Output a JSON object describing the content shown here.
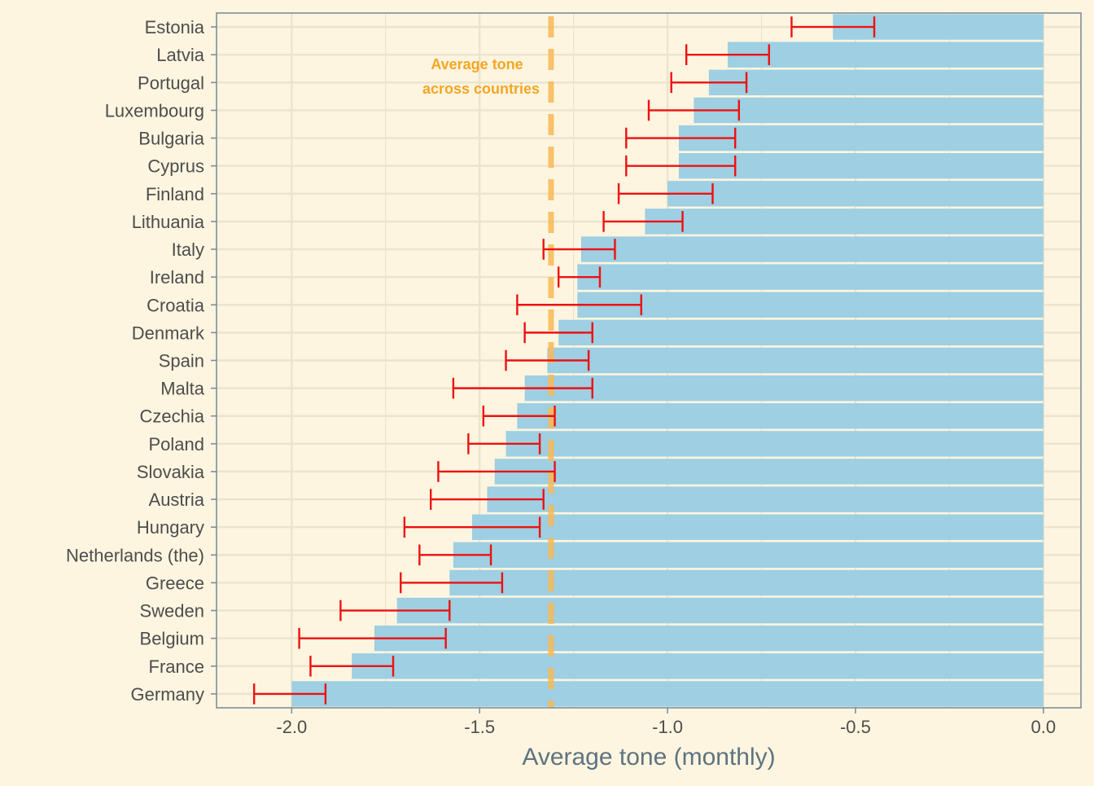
{
  "chart_data": {
    "type": "bar",
    "orientation": "horizontal",
    "title": "",
    "xlabel": "Average tone (monthly)",
    "ylabel": "",
    "xlim": [
      -2.2,
      0.1
    ],
    "xticks": [
      -2.0,
      -1.5,
      -1.0,
      -0.5,
      0.0
    ],
    "xtick_labels": [
      "-2.0",
      "-1.5",
      "-1.0",
      "-0.5",
      "0.0"
    ],
    "grid": true,
    "categories": [
      "Estonia",
      "Latvia",
      "Portugal",
      "Luxembourg",
      "Bulgaria",
      "Cyprus",
      "Finland",
      "Lithuania",
      "Italy",
      "Ireland",
      "Croatia",
      "Denmark",
      "Spain",
      "Malta",
      "Czechia",
      "Poland",
      "Slovakia",
      "Austria",
      "Hungary",
      "Netherlands (the)",
      "Greece",
      "Sweden",
      "Belgium",
      "France",
      "Germany"
    ],
    "values": [
      -0.56,
      -0.84,
      -0.89,
      -0.93,
      -0.97,
      -0.97,
      -1.0,
      -1.06,
      -1.23,
      -1.24,
      -1.24,
      -1.29,
      -1.32,
      -1.38,
      -1.4,
      -1.43,
      -1.46,
      -1.48,
      -1.52,
      -1.57,
      -1.58,
      -1.72,
      -1.78,
      -1.84,
      -2.0
    ],
    "error_low": [
      -0.67,
      -0.95,
      -0.99,
      -1.05,
      -1.11,
      -1.11,
      -1.13,
      -1.17,
      -1.33,
      -1.29,
      -1.4,
      -1.38,
      -1.43,
      -1.57,
      -1.49,
      -1.53,
      -1.61,
      -1.63,
      -1.7,
      -1.66,
      -1.71,
      -1.87,
      -1.98,
      -1.95,
      -2.1
    ],
    "error_high": [
      -0.45,
      -0.73,
      -0.79,
      -0.81,
      -0.82,
      -0.82,
      -0.88,
      -0.96,
      -1.14,
      -1.18,
      -1.07,
      -1.2,
      -1.21,
      -1.2,
      -1.3,
      -1.34,
      -1.3,
      -1.33,
      -1.34,
      -1.47,
      -1.44,
      -1.58,
      -1.59,
      -1.73,
      -1.91
    ],
    "reference_line": {
      "value": -1.31,
      "label_lines": [
        "Average tone",
        "across countries"
      ]
    },
    "colors": {
      "background": "#fdf5e0",
      "bar": "#9ecfe2",
      "error_bar": "#ee1111",
      "reference_line": "#f9b955",
      "annotation": "#f5a623",
      "panel_border": "#7f8f99",
      "grid": "#ece3cf"
    }
  }
}
